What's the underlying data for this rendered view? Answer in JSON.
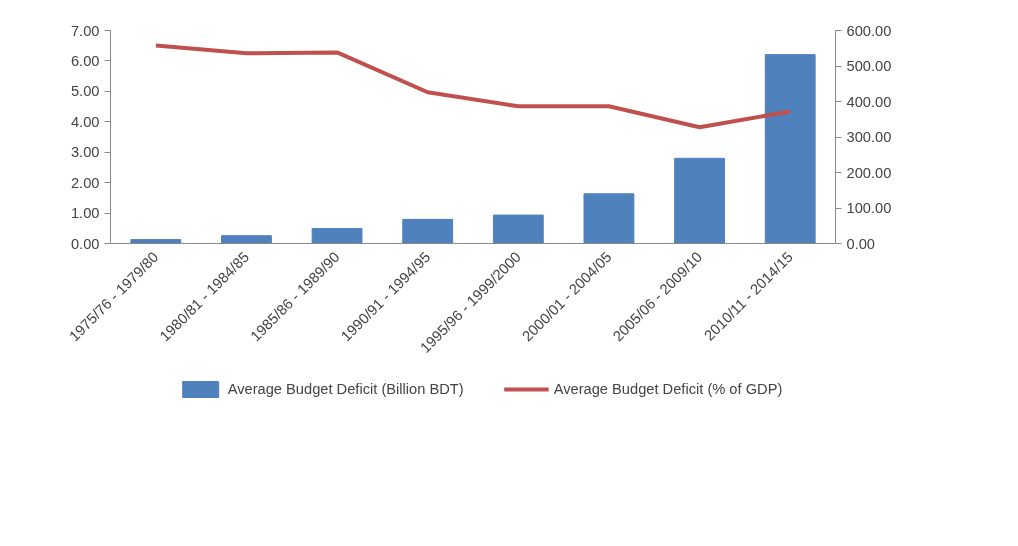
{
  "chart_data": {
    "type": "bar",
    "categories": [
      "1975/76 - 1979/80",
      "1980/81 - 1984/85",
      "1985/86 - 1989/90",
      "1990/91 - 1994/95",
      "1995/96 - 1999/2000",
      "2000/01 - 2004/05",
      "2005/06 - 2009/10",
      "2010/11 - 2014/15"
    ],
    "series": [
      {
        "name": "Average Budget Deficit (Billion BDT)",
        "type": "bar",
        "axis": "y2",
        "color": "#4f81bd",
        "values": [
          11,
          22,
          42,
          68,
          80,
          140,
          240,
          532
        ]
      },
      {
        "name": "Average Budget Deficit (% of GDP)",
        "type": "line",
        "axis": "y",
        "color": "#c0504d",
        "values": [
          6.51,
          6.25,
          6.28,
          4.97,
          4.51,
          4.51,
          3.82,
          4.34
        ]
      }
    ],
    "ylim": [
      0,
      7
    ],
    "yticks": [
      {
        "value": 0,
        "label": "0.00"
      },
      {
        "value": 1,
        "label": "1.00"
      },
      {
        "value": 2,
        "label": "2.00"
      },
      {
        "value": 3,
        "label": "3.00"
      },
      {
        "value": 4,
        "label": "4.00"
      },
      {
        "value": 5,
        "label": "5.00"
      },
      {
        "value": 6,
        "label": "6.00"
      },
      {
        "value": 7,
        "label": "7.00"
      }
    ],
    "y2lim": [
      0,
      600
    ],
    "y2ticks": [
      {
        "value": 0,
        "label": "0.00"
      },
      {
        "value": 100,
        "label": "100.00"
      },
      {
        "value": 200,
        "label": "200.00"
      },
      {
        "value": 300,
        "label": "300.00"
      },
      {
        "value": 400,
        "label": "400.00"
      },
      {
        "value": 500,
        "label": "500.00"
      },
      {
        "value": 600,
        "label": "600.00"
      }
    ],
    "legend": "bottom",
    "grid": false,
    "marker": "none",
    "line_style": "solid"
  }
}
